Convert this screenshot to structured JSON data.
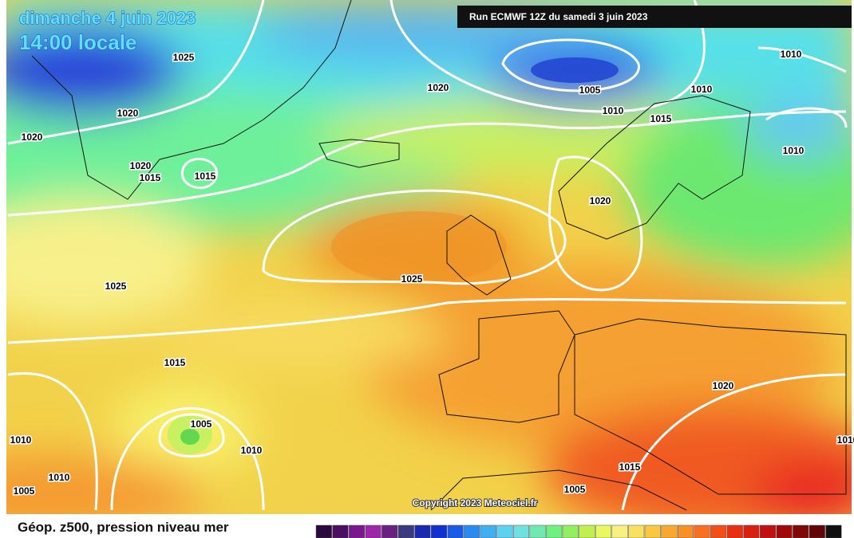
{
  "header": {
    "date": "dimanche 4 juin 2023",
    "time": "14:00 locale",
    "run": "Run ECMWF 12Z du samedi 3 juin 2023"
  },
  "isobar_labels": [
    "1025",
    "1020",
    "1020",
    "1020",
    "1015",
    "1015",
    "1020",
    "1005",
    "1010",
    "1010",
    "1015",
    "1010",
    "1010",
    "1020",
    "1025",
    "1025",
    "1015",
    "1005",
    "1010",
    "1010",
    "1010",
    "1005",
    "1020",
    "1015",
    "1005",
    "1010"
  ],
  "copyright": "Copyright 2023 Meteociel.fr",
  "footer": {
    "title": "Géop. z500, pression niveau mer"
  }
}
